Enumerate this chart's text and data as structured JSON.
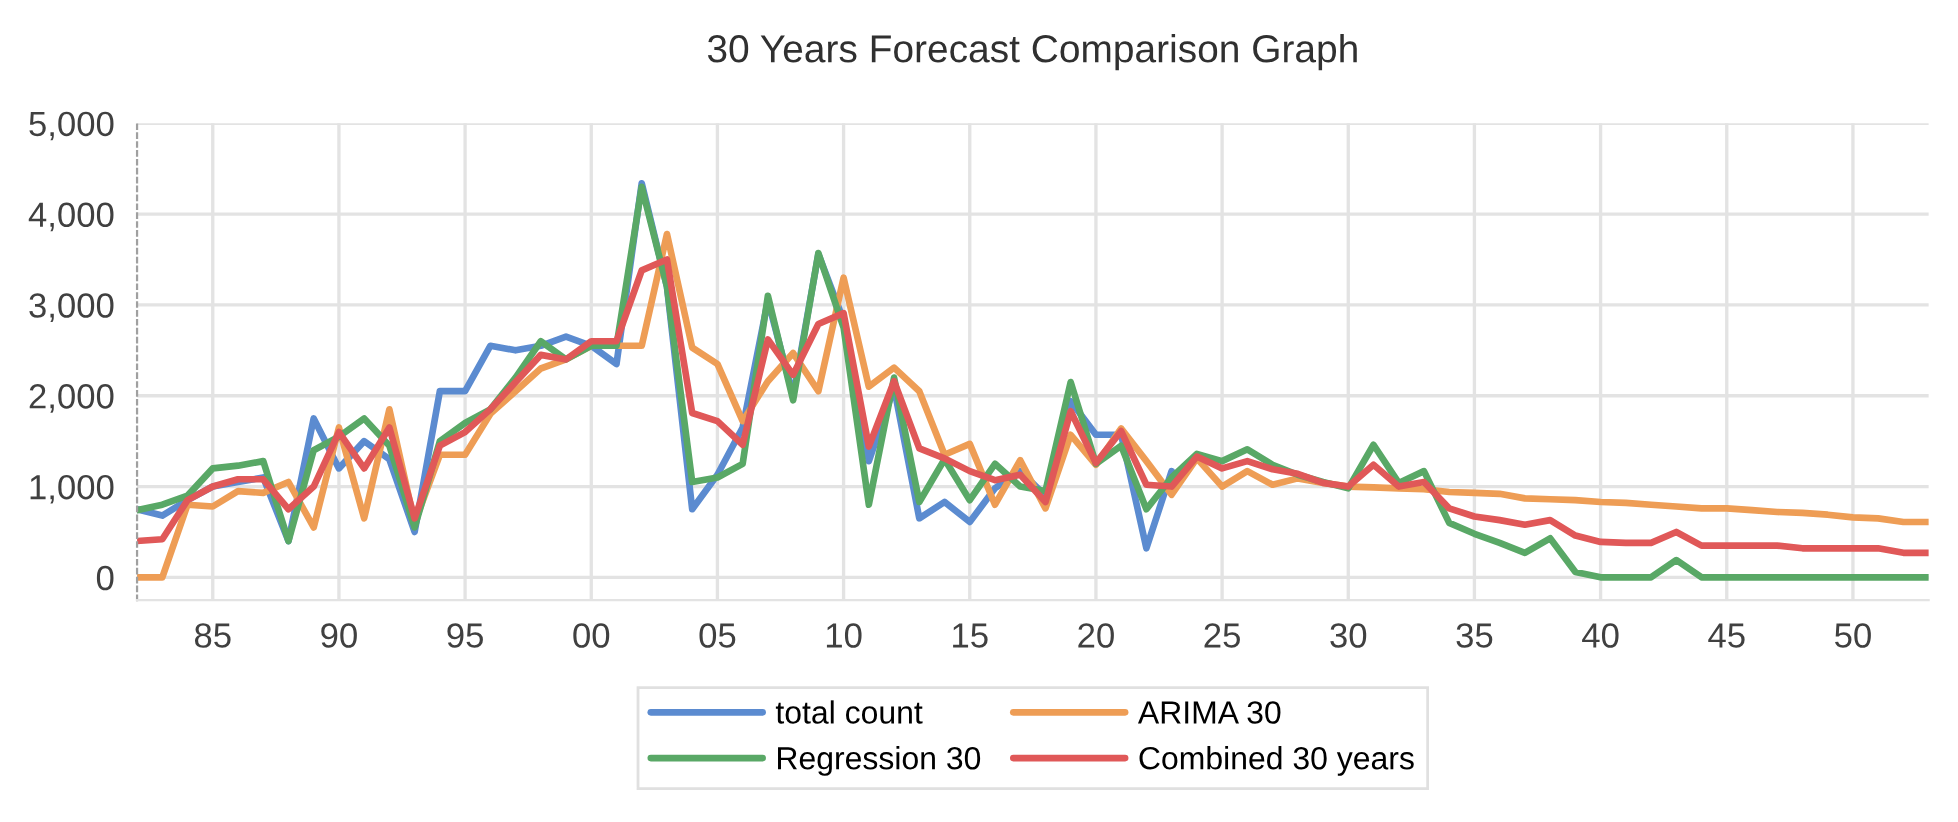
{
  "chart_data": {
    "type": "line",
    "title": "30 Years Forecast Comparison Graph",
    "x": [
      1982,
      1983,
      1984,
      1985,
      1986,
      1987,
      1988,
      1989,
      1990,
      1991,
      1992,
      1993,
      1994,
      1995,
      1996,
      1997,
      1998,
      1999,
      2000,
      2001,
      2002,
      2003,
      2004,
      2005,
      2006,
      2007,
      2008,
      2009,
      2010,
      2011,
      2012,
      2013,
      2014,
      2015,
      2016,
      2017,
      2018,
      2019,
      2020,
      2021,
      2022,
      2023,
      2024,
      2025,
      2026,
      2027,
      2028,
      2029,
      2030,
      2031,
      2032,
      2033,
      2034,
      2035,
      2036,
      2037,
      2038,
      2039,
      2040,
      2041,
      2042,
      2043,
      2044,
      2045,
      2046,
      2047,
      2048,
      2049,
      2050,
      2051,
      2052,
      2053
    ],
    "series": [
      {
        "name": "total count",
        "color": "#5b8bd0",
        "values": [
          750,
          680,
          850,
          1000,
          1050,
          1100,
          400,
          1750,
          1200,
          1500,
          1300,
          500,
          2050,
          2050,
          2550,
          2500,
          2550,
          2650,
          2550,
          2350,
          4340,
          3200,
          750,
          1130,
          1650,
          3050,
          2000,
          3560,
          2830,
          1280,
          2090,
          650,
          830,
          610,
          980,
          1170,
          900,
          1940,
          1570,
          1570,
          320,
          1170,
          null,
          null,
          null,
          null,
          null,
          null,
          null,
          null,
          null,
          null,
          null,
          null,
          null,
          null,
          null,
          null,
          null,
          null,
          null,
          null,
          null,
          null,
          null,
          null,
          null,
          null,
          null,
          null,
          null,
          null
        ]
      },
      {
        "name": "ARIMA 30",
        "color": "#ee9d55",
        "values": [
          0,
          0,
          800,
          780,
          950,
          930,
          1050,
          550,
          1650,
          650,
          1850,
          600,
          1350,
          1350,
          1800,
          2050,
          2300,
          2400,
          2550,
          2550,
          2550,
          3780,
          2530,
          2350,
          1720,
          2160,
          2470,
          2050,
          3300,
          2100,
          2310,
          2050,
          1350,
          1470,
          800,
          1290,
          760,
          1570,
          1240,
          1640,
          1280,
          910,
          1310,
          1000,
          1170,
          1020,
          1090,
          1040,
          1000,
          990,
          980,
          970,
          940,
          930,
          920,
          870,
          860,
          850,
          830,
          820,
          800,
          780,
          760,
          760,
          740,
          720,
          710,
          690,
          660,
          650,
          610,
          610
        ]
      },
      {
        "name": "Regression 30",
        "color": "#59a866",
        "values": [
          740,
          800,
          900,
          1200,
          1230,
          1280,
          400,
          1400,
          1550,
          1750,
          1450,
          550,
          1500,
          1700,
          1850,
          2200,
          2600,
          2400,
          2550,
          2550,
          4300,
          3200,
          1050,
          1100,
          1250,
          3100,
          1950,
          3570,
          2750,
          800,
          2200,
          830,
          1300,
          850,
          1250,
          1000,
          950,
          2150,
          1250,
          1450,
          750,
          1100,
          1360,
          1280,
          1410,
          1240,
          1130,
          1050,
          980,
          1460,
          1040,
          1170,
          600,
          480,
          380,
          270,
          430,
          60,
          0,
          0,
          0,
          190,
          0,
          0,
          0,
          0,
          0,
          0,
          0,
          0,
          0,
          0
        ]
      },
      {
        "name": "Combined 30 years",
        "color": "#e05858",
        "values": [
          400,
          420,
          850,
          1000,
          1080,
          1080,
          750,
          1000,
          1600,
          1200,
          1650,
          650,
          1450,
          1600,
          1850,
          2150,
          2450,
          2400,
          2600,
          2600,
          3380,
          3500,
          1810,
          1720,
          1460,
          2620,
          2230,
          2790,
          2910,
          1440,
          2160,
          1420,
          1310,
          1170,
          1070,
          1130,
          830,
          1830,
          1260,
          1610,
          1020,
          1000,
          1330,
          1200,
          1280,
          1190,
          1140,
          1040,
          1000,
          1240,
          1000,
          1050,
          760,
          670,
          630,
          580,
          630,
          460,
          390,
          380,
          380,
          500,
          350,
          350,
          350,
          350,
          320,
          320,
          320,
          320,
          270,
          270
        ]
      }
    ],
    "xlim": [
      1982,
      2053
    ],
    "xticks": [
      {
        "value": 1985,
        "label": "85"
      },
      {
        "value": 1990,
        "label": "90"
      },
      {
        "value": 1995,
        "label": "95"
      },
      {
        "value": 2000,
        "label": "00"
      },
      {
        "value": 2005,
        "label": "05"
      },
      {
        "value": 2010,
        "label": "10"
      },
      {
        "value": 2015,
        "label": "15"
      },
      {
        "value": 2020,
        "label": "20"
      },
      {
        "value": 2025,
        "label": "25"
      },
      {
        "value": 2030,
        "label": "30"
      },
      {
        "value": 2035,
        "label": "35"
      },
      {
        "value": 2040,
        "label": "40"
      },
      {
        "value": 2045,
        "label": "45"
      },
      {
        "value": 2050,
        "label": "50"
      }
    ],
    "ylim": [
      -250,
      5000
    ],
    "yticks": [
      {
        "value": 0,
        "label": "0"
      },
      {
        "value": 1000,
        "label": "1,000"
      },
      {
        "value": 2000,
        "label": "2,000"
      },
      {
        "value": 3000,
        "label": "3,000"
      },
      {
        "value": 4000,
        "label": "4,000"
      },
      {
        "value": 5000,
        "label": "5,000"
      }
    ],
    "grid": true,
    "legend": "bottom",
    "marker": "none",
    "line_style": "solid"
  }
}
